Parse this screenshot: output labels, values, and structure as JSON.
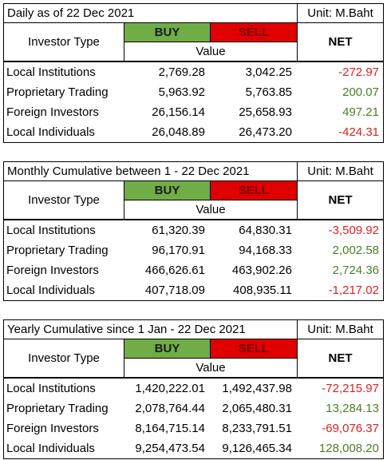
{
  "tables": [
    {
      "title": "Daily as of 22 Dec 2021",
      "unit": "Unit: M.Baht",
      "header": {
        "investor_type": "Investor Type",
        "buy": "BUY",
        "sell": "SELL",
        "net": "NET",
        "value": "Value"
      },
      "rows": [
        [
          "Local Institutions",
          "2,769.28",
          "3,042.25",
          "-272.97"
        ],
        [
          "Proprietary Trading",
          "5,963.92",
          "5,763.85",
          "200.07"
        ],
        [
          "Foreign Investors",
          "26,156.14",
          "25,658.93",
          "497.21"
        ],
        [
          "Local Individuals",
          "26,048.89",
          "26,473.20",
          "-424.31"
        ]
      ]
    },
    {
      "title": "Monthly Cumulative between 1 - 22 Dec 2021",
      "unit": "Unit: M.Baht",
      "header": {
        "investor_type": "Investor Type",
        "buy": "BUY",
        "sell": "SELL",
        "net": "NET",
        "value": "Value"
      },
      "rows": [
        [
          "Local Institutions",
          "61,320.39",
          "64,830.31",
          "-3,509.92"
        ],
        [
          "Proprietary Trading",
          "96,170.91",
          "94,168.33",
          "2,002.58"
        ],
        [
          "Foreign Investors",
          "466,626.61",
          "463,902.26",
          "2,724.36"
        ],
        [
          "Local Individuals",
          "407,718.09",
          "408,935.11",
          "-1,217.02"
        ]
      ]
    },
    {
      "title": "Yearly Cumulative since 1 Jan - 22 Dec 2021",
      "unit": "Unit: M.Baht",
      "header": {
        "investor_type": "Investor Type",
        "buy": "BUY",
        "sell": "SELL",
        "net": "NET",
        "value": "Value"
      },
      "rows": [
        [
          "Local Institutions",
          "1,420,222.01",
          "1,492,437.98",
          "-72,215.97"
        ],
        [
          "Proprietary Trading",
          "2,078,764.44",
          "2,065,480.31",
          "13,284.13"
        ],
        [
          "Foreign Investors",
          "8,164,715.14",
          "8,233,791.51",
          "-69,076.37"
        ],
        [
          "Local Individuals",
          "9,254,473.54",
          "9,126,465.34",
          "128,008.20"
        ]
      ]
    }
  ]
}
